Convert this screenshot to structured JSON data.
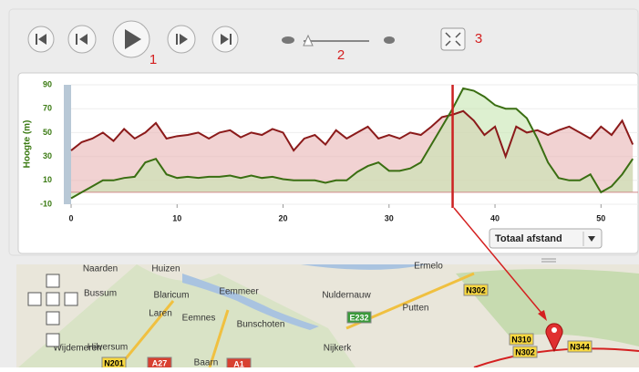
{
  "controls": {
    "annotations": [
      "1",
      "2",
      "3"
    ]
  },
  "chart_data": {
    "type": "area-line",
    "y_label": "Hoogte (m)",
    "x": [
      0,
      1,
      2,
      3,
      4,
      5,
      6,
      7,
      8,
      9,
      10,
      11,
      12,
      13,
      14,
      15,
      16,
      17,
      18,
      19,
      20,
      21,
      22,
      23,
      24,
      25,
      26,
      27,
      28,
      29,
      30,
      31,
      32,
      33,
      34,
      35,
      36,
      37,
      38,
      39,
      40,
      41,
      42,
      43,
      44,
      45,
      46,
      47,
      48,
      49,
      50,
      51,
      52,
      53
    ],
    "series": [
      {
        "color": "#8b1a1a",
        "fill": "#e8b4b4",
        "values": [
          35,
          42,
          45,
          50,
          43,
          53,
          45,
          50,
          58,
          45,
          47,
          48,
          50,
          45,
          50,
          52,
          46,
          50,
          48,
          53,
          50,
          35,
          45,
          48,
          40,
          52,
          45,
          50,
          55,
          45,
          48,
          45,
          50,
          48,
          55,
          63,
          65,
          68,
          60,
          48,
          55,
          30,
          55,
          50,
          52,
          48,
          52,
          55,
          50,
          45,
          55,
          48,
          60,
          40
        ]
      },
      {
        "color": "#3a6e12",
        "fill": "#c6e6b0",
        "values": [
          -5,
          0,
          5,
          10,
          10,
          12,
          13,
          25,
          28,
          15,
          12,
          13,
          12,
          13,
          13,
          14,
          12,
          14,
          12,
          13,
          11,
          10,
          10,
          10,
          8,
          10,
          10,
          17,
          22,
          25,
          18,
          18,
          20,
          25,
          40,
          55,
          70,
          87,
          85,
          80,
          73,
          70,
          70,
          62,
          45,
          25,
          12,
          10,
          10,
          15,
          0,
          5,
          15,
          28
        ]
      }
    ],
    "xlim": [
      0,
      53.5
    ],
    "ylim": [
      -10,
      90
    ],
    "xticks": [
      0,
      10,
      20,
      30,
      40,
      50
    ],
    "yticks": [
      -10,
      10,
      30,
      50,
      70,
      90
    ],
    "grid": true,
    "cursor_x": 36,
    "cursor_color": "#cc2222"
  },
  "dropdown": {
    "label": "Totaal afstand"
  },
  "map": {
    "labels": [
      "Naarden",
      "Huizen",
      "Bussum",
      "Blaricum",
      "Eemmeer",
      "Nuldernauw",
      "Ermelo",
      "Laren",
      "Eemnes",
      "Bunschoten",
      "Putten",
      "Hilversum",
      "Nijkerk",
      "Baarn",
      "Wijdemeren"
    ],
    "roads": [
      "N302",
      "E232",
      "N310",
      "N302",
      "N344",
      "N201",
      "A27",
      "A1"
    ]
  }
}
